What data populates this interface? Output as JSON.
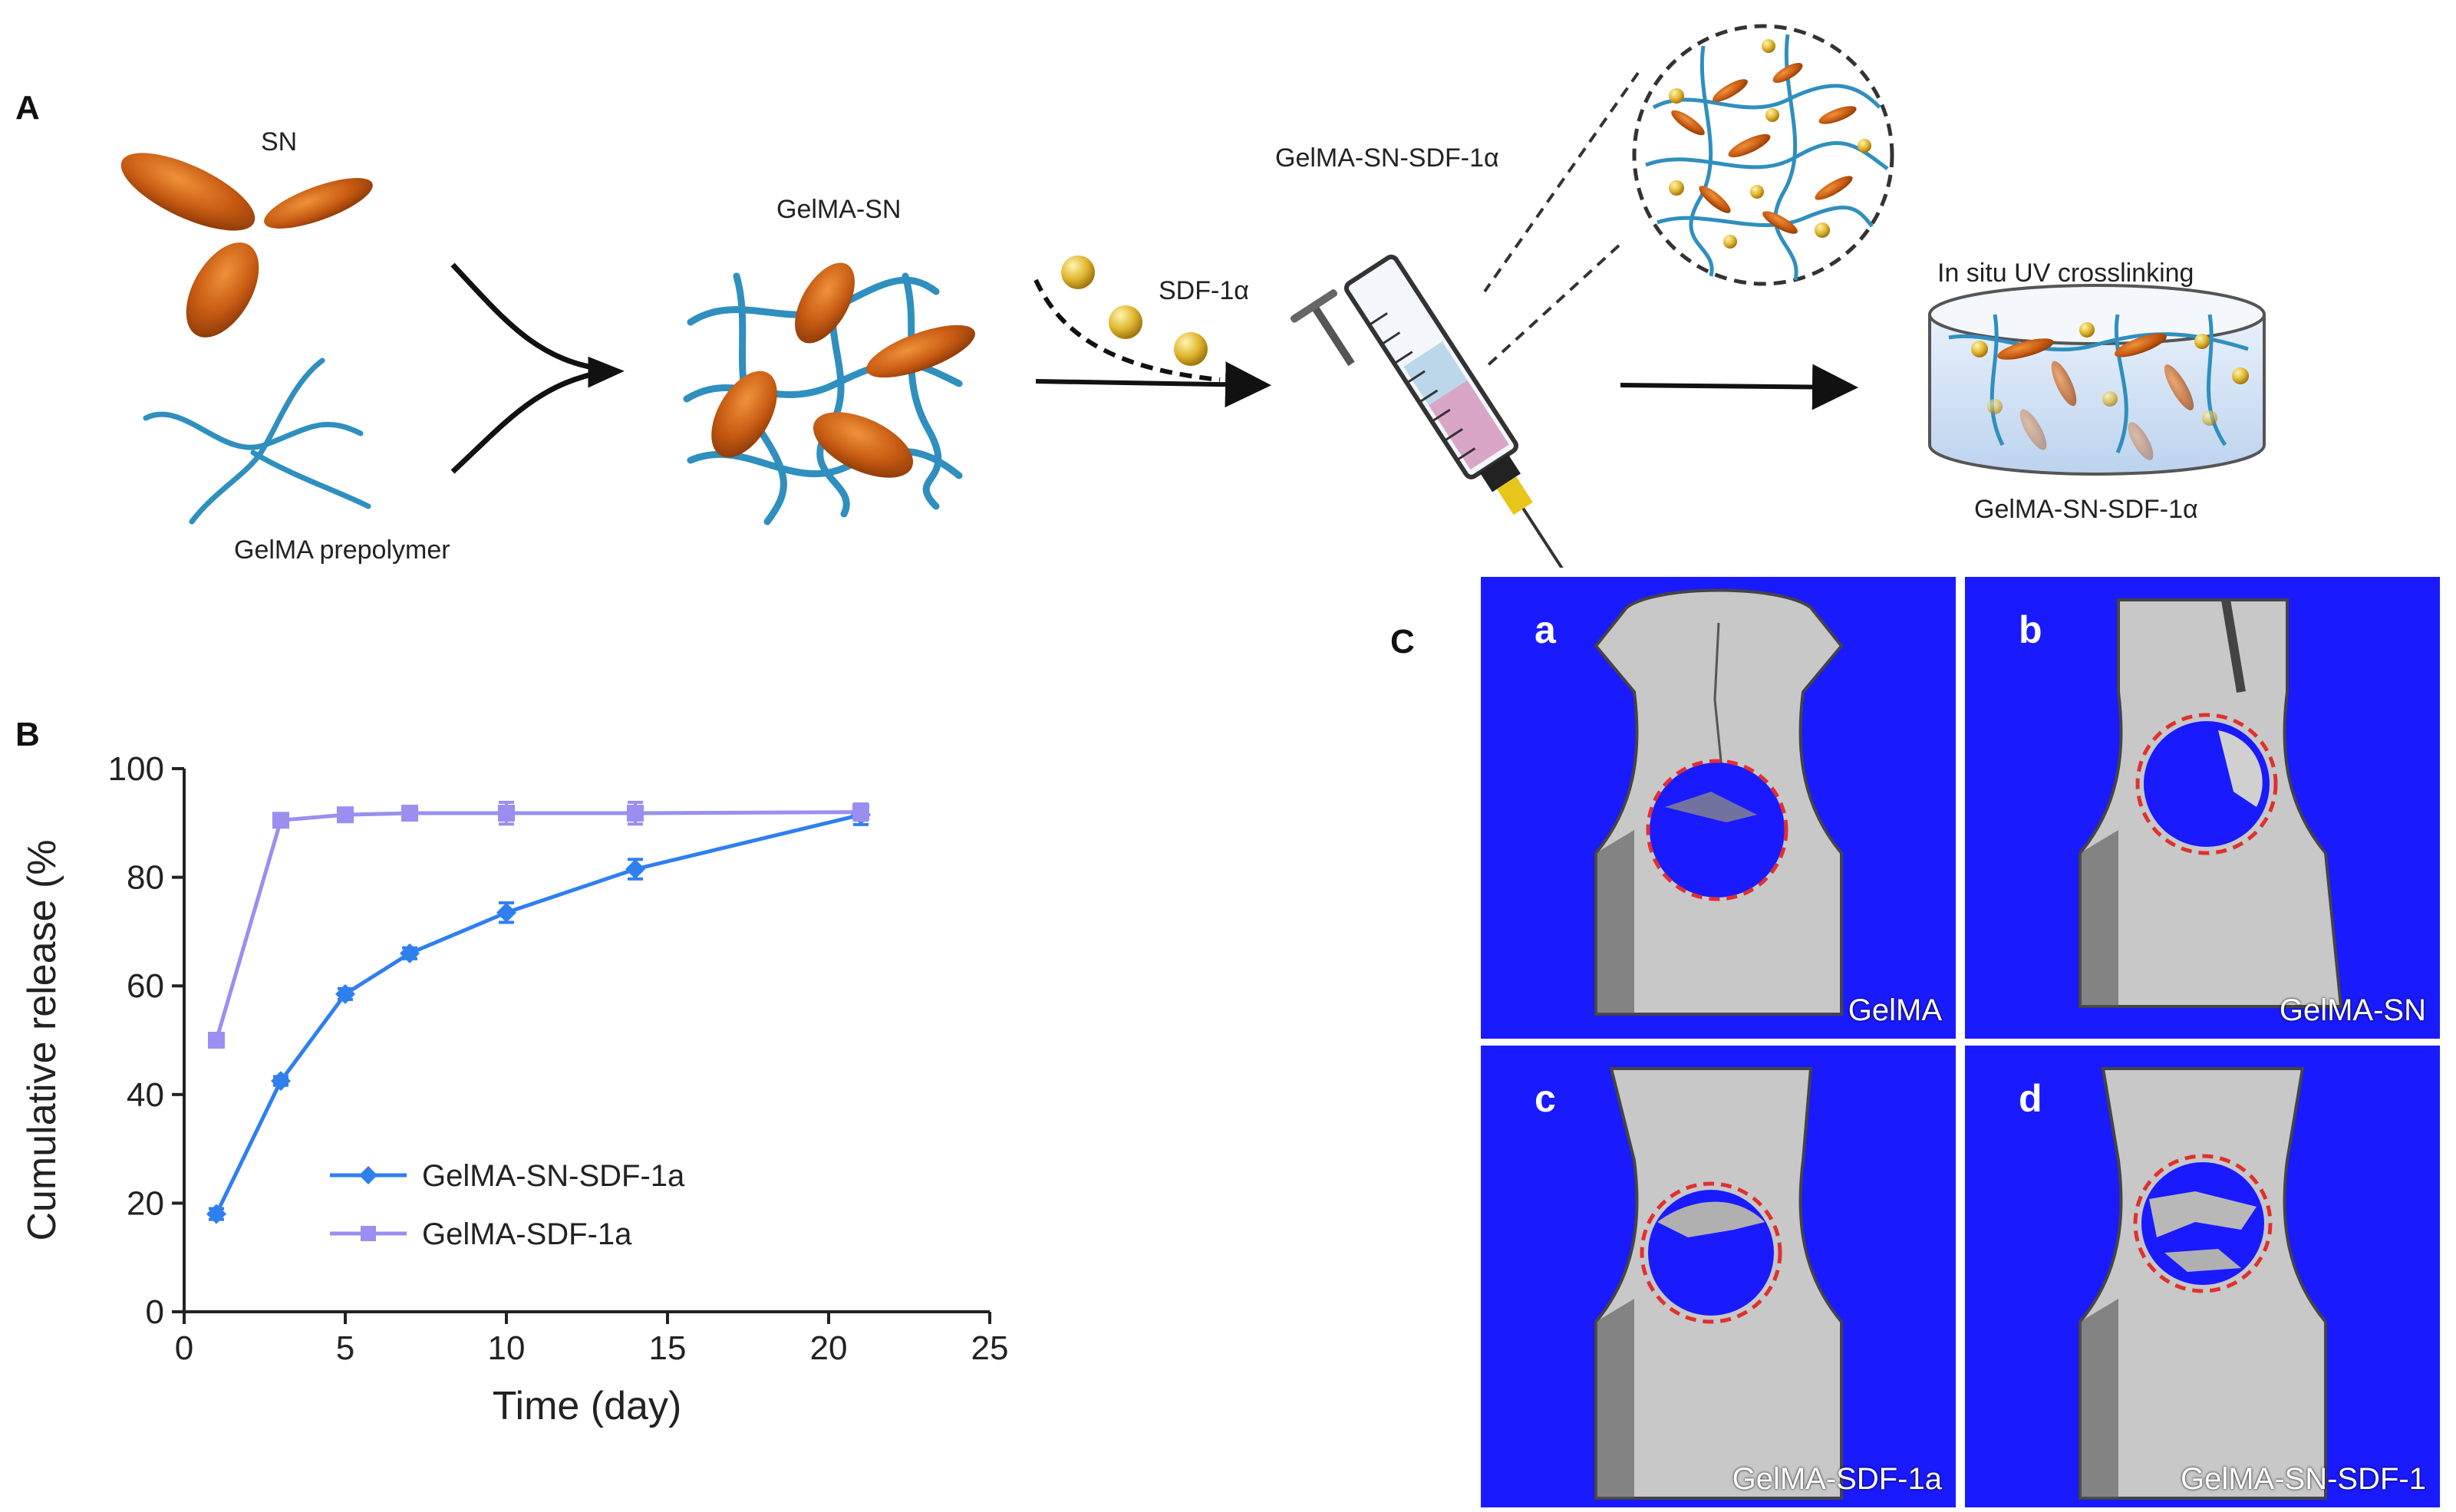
{
  "panel_a": {
    "letter": "A",
    "labels": {
      "sn": "SN",
      "gelma_prepolymer": "GelMA prepolymer",
      "gelma_sn": "GelMA-SN",
      "sdf": "SDF-1α",
      "syringe": "GelMA-SN-SDF-1α",
      "uv": "In situ UV crosslinking",
      "dish": "GelMA-SN-SDF-1α"
    }
  },
  "panel_b": {
    "letter": "B"
  },
  "panel_c": {
    "letter": "C",
    "images": [
      {
        "letter": "a",
        "caption": "GelMA"
      },
      {
        "letter": "b",
        "caption": "GelMA-SN"
      },
      {
        "letter": "c",
        "caption": "GelMA-SDF-1a"
      },
      {
        "letter": "d",
        "caption": "GelMA-SN-SDF-1"
      }
    ]
  },
  "chart_data": {
    "type": "line",
    "title": "",
    "xlabel": "Time (day)",
    "ylabel": "Cumulative release (%",
    "xlim": [
      0,
      25
    ],
    "ylim": [
      0,
      100
    ],
    "xticks": [
      0,
      5,
      10,
      15,
      20,
      25
    ],
    "yticks": [
      0,
      20,
      40,
      60,
      80,
      100
    ],
    "grid": false,
    "legend_position": "lower-center",
    "series": [
      {
        "name": "GelMA-SN-SDF-1a",
        "color": "#2f7fef",
        "marker": "diamond",
        "x": [
          1,
          3,
          5,
          7,
          10,
          14,
          21
        ],
        "y": [
          18,
          42.5,
          58.5,
          66,
          73.5,
          81.5,
          91.5
        ],
        "err": [
          1,
          0.8,
          1,
          1,
          1.8,
          1.8,
          1.8
        ]
      },
      {
        "name": "GelMA-SDF-1a",
        "color": "#9a8ff0",
        "marker": "square",
        "x": [
          1,
          3,
          5,
          7,
          10,
          14,
          21
        ],
        "y": [
          50,
          90.5,
          91.5,
          91.8,
          91.8,
          91.8,
          92
        ],
        "err": [
          1,
          1,
          1,
          1,
          2,
          2,
          1.5
        ]
      }
    ]
  }
}
